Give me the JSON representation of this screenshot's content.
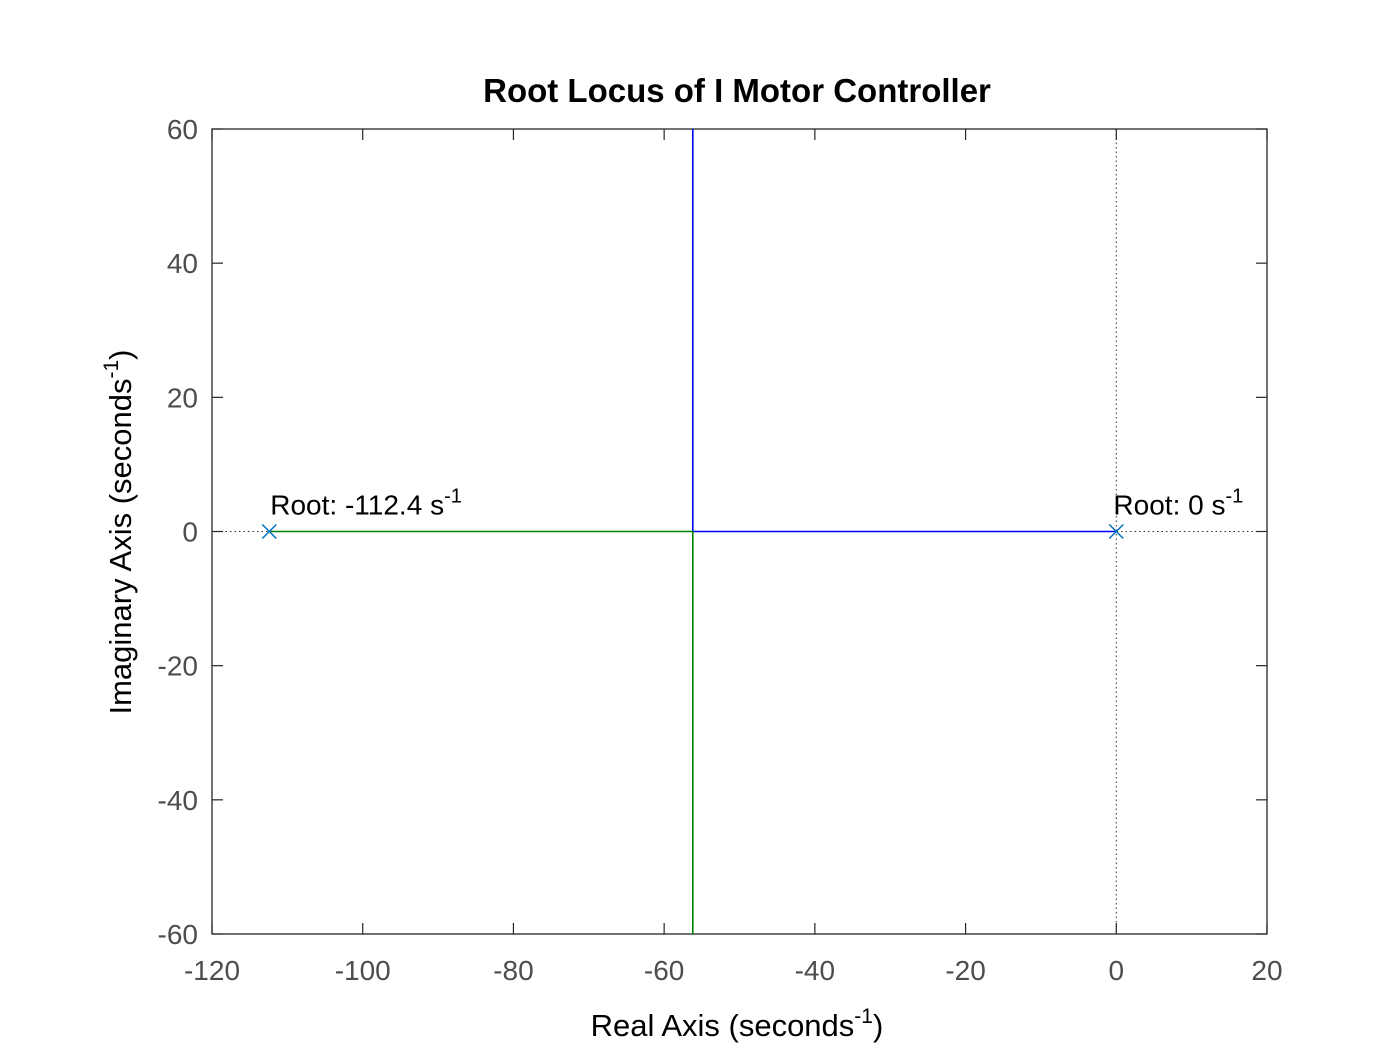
{
  "chart_data": {
    "type": "line",
    "title": "Root Locus of I Motor Controller",
    "xlabel": "Real Axis (seconds",
    "ylabel": "Imaginary Axis (seconds",
    "unit_exponent": "-1",
    "xlim": [
      -120,
      20
    ],
    "ylim": [
      -60,
      60
    ],
    "xticks": [
      "-120",
      "-100",
      "-80",
      "-60",
      "-40",
      "-20",
      "0",
      "20"
    ],
    "yticks": [
      "60",
      "40",
      "20",
      "0",
      "-20",
      "-40",
      "-60"
    ],
    "grid": false,
    "series": [
      {
        "color": "#0000ff",
        "points": [
          [
            0,
            0
          ],
          [
            -56.2,
            0
          ],
          [
            -56.2,
            60
          ]
        ]
      },
      {
        "color": "#008000",
        "points": [
          [
            -112.4,
            0
          ],
          [
            -56.2,
            0
          ],
          [
            -56.2,
            -60
          ]
        ]
      }
    ],
    "poles": [
      {
        "x": -112.4,
        "y": 0,
        "marker": "x",
        "color": "#0072bd"
      },
      {
        "x": 0,
        "y": 0,
        "marker": "x",
        "color": "#0072bd"
      }
    ],
    "annotations": [
      {
        "x": -112.4,
        "y": 0,
        "text": "Root: -112.4 s",
        "sup": "-1"
      },
      {
        "x": 0,
        "y": 0,
        "text": "Root: 0 s",
        "sup": "-1"
      }
    ],
    "reference_lines": [
      {
        "orientation": "horizontal",
        "value": 0,
        "style": "dotted"
      },
      {
        "orientation": "vertical",
        "value": 0,
        "style": "dotted"
      }
    ]
  }
}
